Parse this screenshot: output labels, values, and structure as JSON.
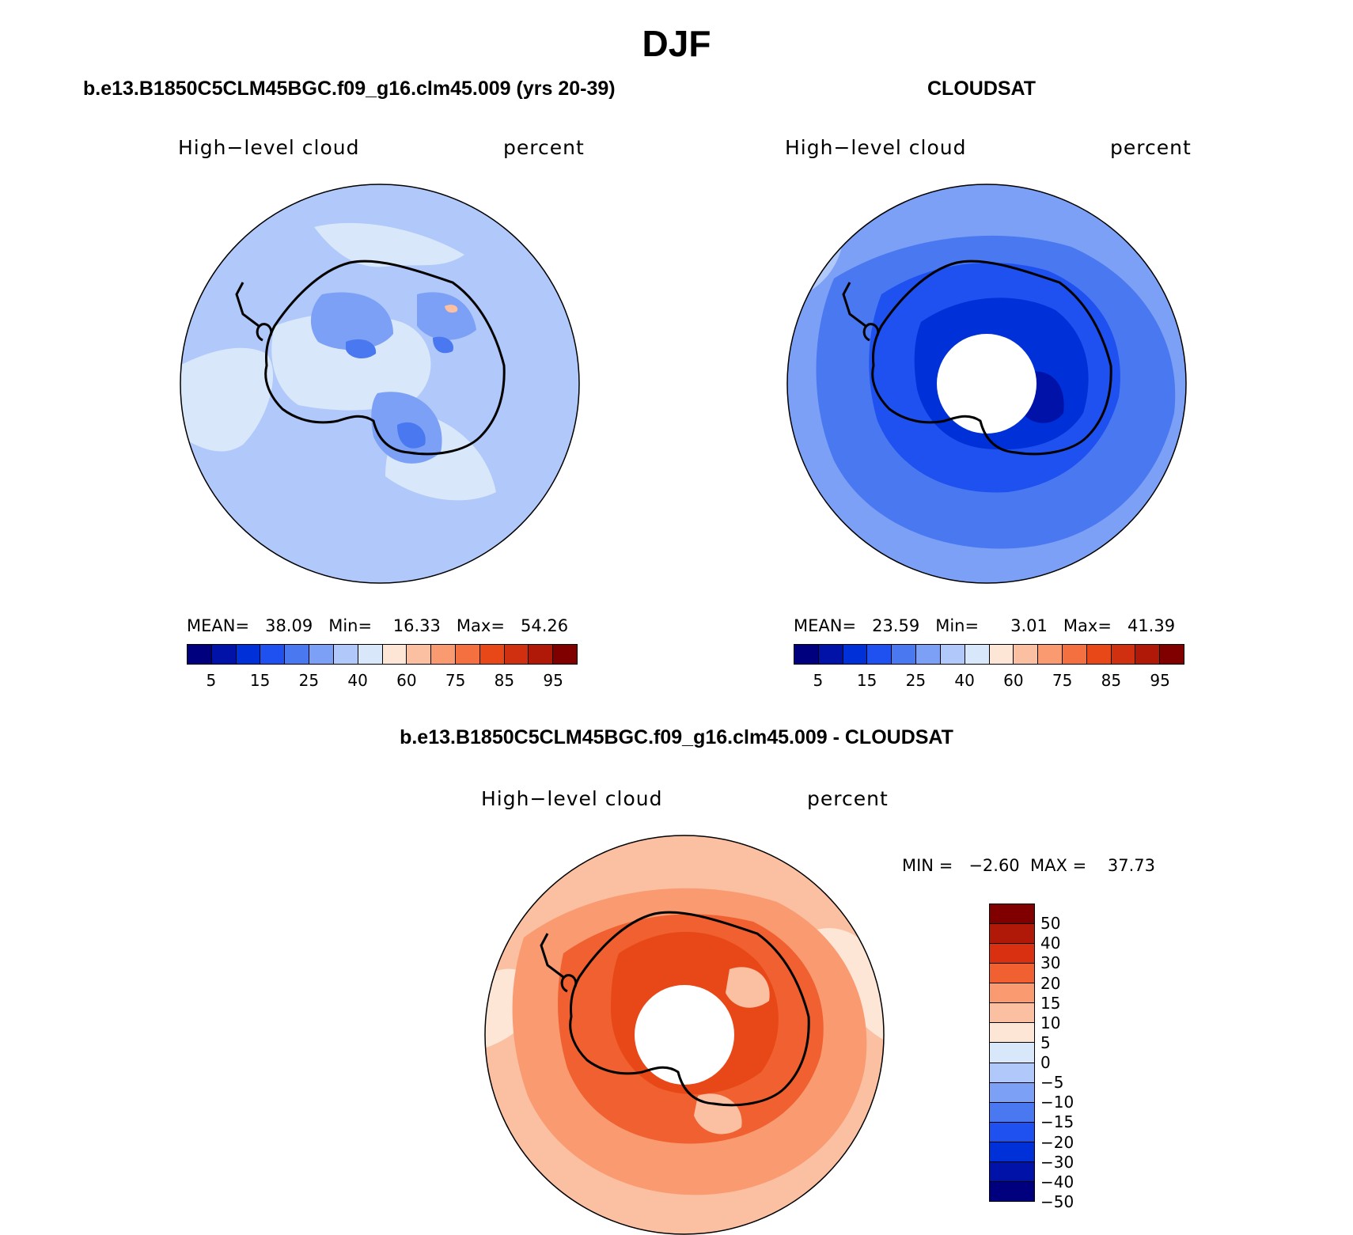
{
  "figure": {
    "title": "DJF",
    "panels": [
      {
        "title": "b.e13.B1850C5CLM45BGC.f09_g16.clm45.009 (yrs 20-39)",
        "variable": "High−level cloud",
        "units": "percent",
        "stats_text": "MEAN=   38.09   Min=    16.33   Max=   54.26"
      },
      {
        "title": "CLOUDSAT",
        "variable": "High−level cloud",
        "units": "percent",
        "stats_text": "MEAN=   23.59   Min=      3.01   Max=   41.39"
      },
      {
        "title": "b.e13.B1850C5CLM45BGC.f09_g16.clm45.009 - CLOUDSAT",
        "variable": "High−level cloud",
        "units": "percent",
        "stats_text": "MIN =   −2.60  MAX =    37.73"
      }
    ],
    "colorbar_abs": {
      "colors": [
        "#00007f",
        "#0012a8",
        "#0030d8",
        "#1f50f0",
        "#4a78f0",
        "#7ba0f5",
        "#b0c8fa",
        "#d8e8fa",
        "#fde6d6",
        "#fbc0a2",
        "#f99a70",
        "#f47040",
        "#e84818",
        "#d03010",
        "#b01808",
        "#800000"
      ],
      "tick_labels": [
        "5",
        "15",
        "25",
        "40",
        "60",
        "75",
        "85",
        "95"
      ]
    },
    "colorbar_diff": {
      "colors": [
        "#800000",
        "#b01808",
        "#d83010",
        "#f06030",
        "#f99a70",
        "#fbc0a2",
        "#fde6d6",
        "#d8e8fa",
        "#b0c8fa",
        "#7ba0f5",
        "#4a78f0",
        "#1f50f0",
        "#0030d8",
        "#0012a8",
        "#00007f"
      ],
      "tick_labels": [
        "50",
        "40",
        "30",
        "20",
        "15",
        "10",
        "5",
        "0",
        "−5",
        "−10",
        "−15",
        "−20",
        "−30",
        "−40",
        "−50"
      ]
    },
    "maps": {
      "projection": "south polar stereographic",
      "panel1_colors": {
        "base": "#b0c8fa",
        "light": "#d8e8fa",
        "mid": "#7ba0f5",
        "dark": "#4a78f0",
        "accent": "#fbc0a2"
      },
      "panel2_colors": {
        "outer": "#7ba0f5",
        "mid": "#4a78f0",
        "inner": "#1f50f0",
        "core": "#0030d8",
        "darkest": "#0012a8"
      },
      "panel3_colors": {
        "outer": "#fbc0a2",
        "mid": "#f99a70",
        "inner": "#f06030",
        "core": "#e84818",
        "pale": "#fde6d6"
      }
    }
  }
}
